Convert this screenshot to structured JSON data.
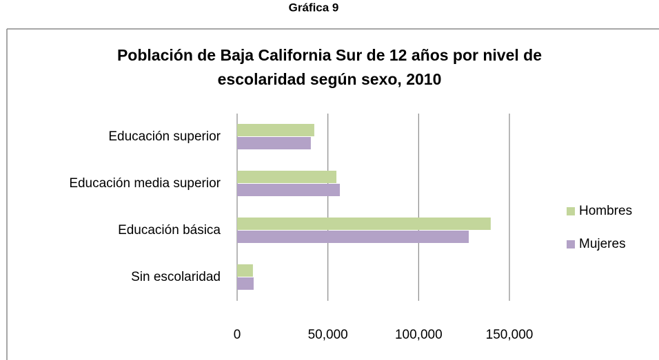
{
  "heading": "Gráfica 9",
  "chart_data": {
    "type": "barh",
    "title": [
      "Población de Baja California Sur de 12 años por nivel de",
      "escolaridad según sexo, 2010"
    ],
    "categories": [
      "Educación superior",
      "Educación media superior",
      "Educación básica",
      "Sin escolaridad"
    ],
    "series": [
      {
        "name": "Hombres",
        "color": "#c3d69b",
        "values": [
          42500,
          54700,
          139700,
          8700
        ]
      },
      {
        "name": "Mujeres",
        "color": "#b3a2c7",
        "values": [
          40600,
          56600,
          127600,
          9100
        ]
      }
    ],
    "xlim": [
      0,
      150000
    ],
    "xticks": [
      0,
      {
        "value": 50000,
        "label": "50,000"
      },
      {
        "value": 100000,
        "label": "100,000"
      },
      {
        "value": 150000,
        "label": "150,000"
      }
    ],
    "grid": true,
    "legend": "right"
  }
}
